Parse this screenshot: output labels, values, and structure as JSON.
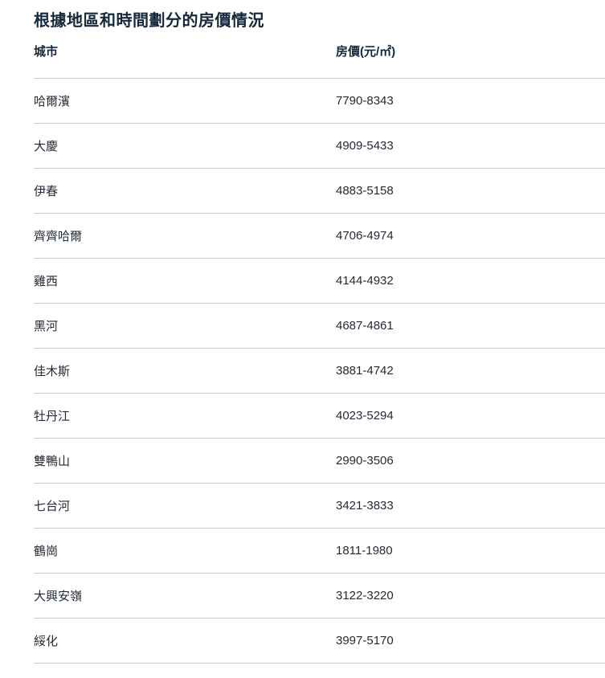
{
  "title": "根據地區和時間劃分的房價情況",
  "table": {
    "columns": [
      "城市",
      "房價(元/㎡)"
    ],
    "rows": [
      {
        "city": "哈爾濱",
        "price": "7790-8343"
      },
      {
        "city": "大慶",
        "price": "4909-5433"
      },
      {
        "city": "伊春",
        "price": "4883-5158"
      },
      {
        "city": "齊齊哈爾",
        "price": "4706-4974"
      },
      {
        "city": "雞西",
        "price": "4144-4932"
      },
      {
        "city": "黑河",
        "price": "4687-4861"
      },
      {
        "city": "佳木斯",
        "price": "3881-4742"
      },
      {
        "city": "牡丹江",
        "price": "4023-5294"
      },
      {
        "city": "雙鴨山",
        "price": "2990-3506"
      },
      {
        "city": "七台河",
        "price": "3421-3833"
      },
      {
        "city": "鶴崗",
        "price": "1811-1980"
      },
      {
        "city": "大興安嶺",
        "price": "3122-3220"
      },
      {
        "city": "綏化",
        "price": "3997-5170"
      }
    ]
  },
  "colors": {
    "heading": "#16283c",
    "body_text": "#232b36",
    "divider": "#b9cfe0",
    "background": "#ffffff"
  }
}
